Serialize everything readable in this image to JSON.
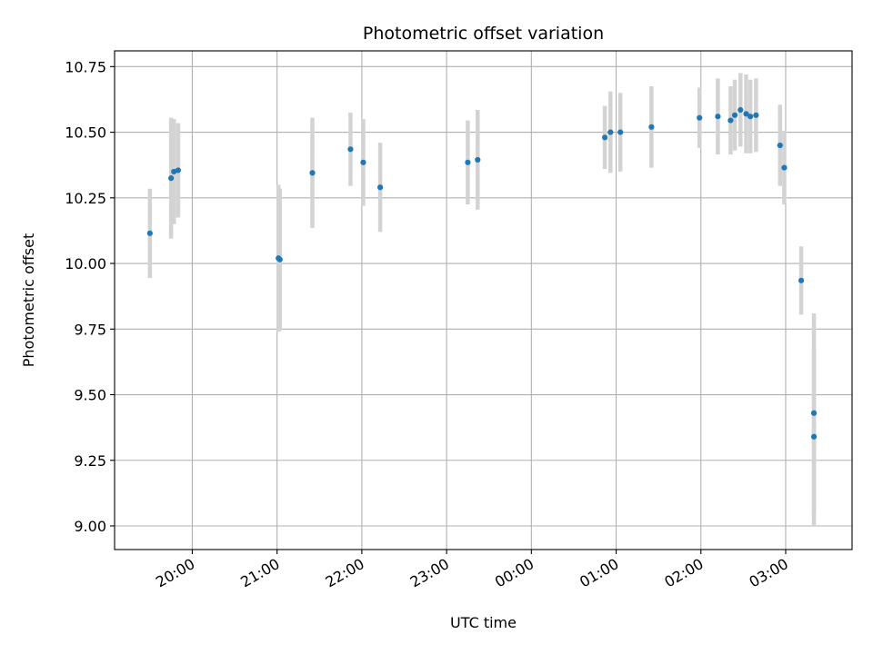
{
  "chart_data": {
    "type": "scatter",
    "title": "Photometric offset variation",
    "xlabel": "UTC time",
    "ylabel": "Photometric offset",
    "x_axis": {
      "kind": "time",
      "unit": "hours (UTC)",
      "range": [
        "19:05",
        "03:47"
      ],
      "ticks": [
        {
          "time": "20:00",
          "label": "20:00"
        },
        {
          "time": "21:00",
          "label": "21:00"
        },
        {
          "time": "22:00",
          "label": "22:00"
        },
        {
          "time": "23:00",
          "label": "23:00"
        },
        {
          "time": "00:00",
          "label": "00:00"
        },
        {
          "time": "01:00",
          "label": "01:00"
        },
        {
          "time": "02:00",
          "label": "02:00"
        },
        {
          "time": "03:00",
          "label": "03:00"
        }
      ],
      "rotated_labels": true
    },
    "y_axis": {
      "ylim": [
        8.91,
        10.81
      ],
      "ticks": [
        {
          "value": 9.0,
          "label": "9.00"
        },
        {
          "value": 9.25,
          "label": "9.25"
        },
        {
          "value": 9.5,
          "label": "9.50"
        },
        {
          "value": 9.75,
          "label": "9.75"
        },
        {
          "value": 10.0,
          "label": "10.00"
        },
        {
          "value": 10.25,
          "label": "10.25"
        },
        {
          "value": 10.5,
          "label": "10.50"
        },
        {
          "value": 10.75,
          "label": "10.75"
        }
      ]
    },
    "grid": true,
    "colors": {
      "point": "#1f77b4",
      "errorbar": "#d3d3d3",
      "grid": "#b0b0b0",
      "axis": "#000000"
    },
    "points": [
      {
        "time": "19:30",
        "y": 10.115,
        "err": 0.17
      },
      {
        "time": "19:45",
        "y": 10.325,
        "err": 0.23
      },
      {
        "time": "19:47",
        "y": 10.35,
        "err": 0.2
      },
      {
        "time": "19:50",
        "y": 10.355,
        "err": 0.18
      },
      {
        "time": "21:01",
        "y": 10.02,
        "err": 0.28
      },
      {
        "time": "21:02",
        "y": 10.015,
        "err": 0.27
      },
      {
        "time": "21:25",
        "y": 10.345,
        "err": 0.21
      },
      {
        "time": "21:52",
        "y": 10.435,
        "err": 0.14
      },
      {
        "time": "22:01",
        "y": 10.385,
        "err": 0.165
      },
      {
        "time": "22:13",
        "y": 10.29,
        "err": 0.17
      },
      {
        "time": "23:15",
        "y": 10.385,
        "err": 0.16
      },
      {
        "time": "23:22",
        "y": 10.395,
        "err": 0.19
      },
      {
        "time": "00:52",
        "y": 10.48,
        "err": 0.12
      },
      {
        "time": "00:56",
        "y": 10.5,
        "err": 0.155
      },
      {
        "time": "01:03",
        "y": 10.5,
        "err": 0.15
      },
      {
        "time": "01:25",
        "y": 10.52,
        "err": 0.155
      },
      {
        "time": "01:59",
        "y": 10.555,
        "err": 0.115
      },
      {
        "time": "02:12",
        "y": 10.56,
        "err": 0.145
      },
      {
        "time": "02:21",
        "y": 10.545,
        "err": 0.13
      },
      {
        "time": "02:24",
        "y": 10.565,
        "err": 0.135
      },
      {
        "time": "02:28",
        "y": 10.585,
        "err": 0.14
      },
      {
        "time": "02:32",
        "y": 10.57,
        "err": 0.15
      },
      {
        "time": "02:35",
        "y": 10.56,
        "err": 0.14
      },
      {
        "time": "02:39",
        "y": 10.565,
        "err": 0.14
      },
      {
        "time": "02:56",
        "y": 10.45,
        "err": 0.155
      },
      {
        "time": "02:59",
        "y": 10.365,
        "err": 0.14
      },
      {
        "time": "03:11",
        "y": 9.935,
        "err": 0.13
      },
      {
        "time": "03:20",
        "y": 9.43,
        "err": 0.38
      },
      {
        "time": "03:20",
        "y": 9.34,
        "err": 0.34
      }
    ]
  }
}
